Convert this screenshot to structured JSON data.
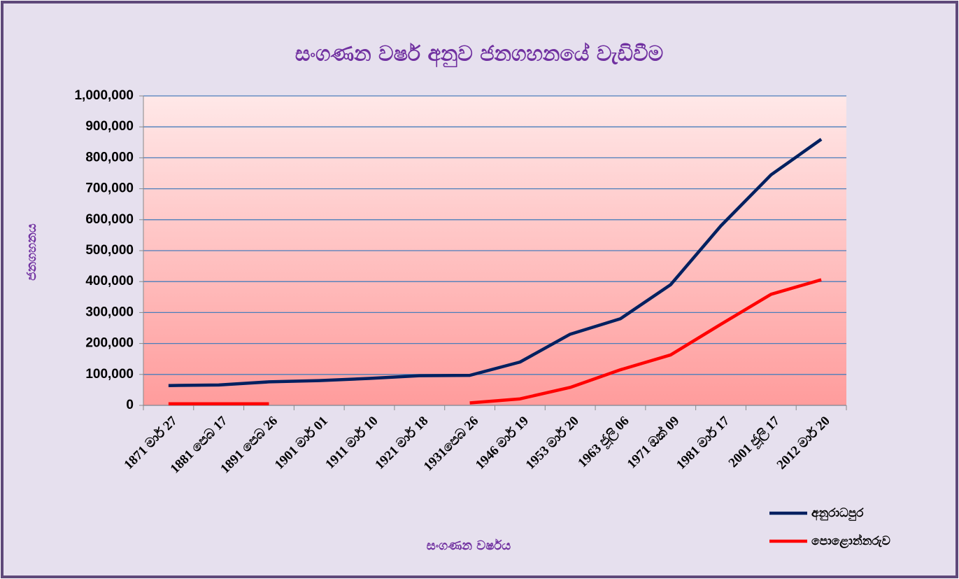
{
  "chart_data": {
    "type": "line",
    "title": "සංගණන වර්ෂ අනුව ජනගහනයේ වැඩිවීම",
    "x_label": "සංගණන වර්ෂය",
    "y_label": "ජනගහනය",
    "categories": [
      "1871 මාර් 27",
      "1881 පෙබ 17",
      "1891 පෙබ 26",
      "1901 මාර් 01",
      "1911 මාර් 10",
      "1921 මාර් 18",
      "1931පෙබ 26",
      "1946 මාර් 19",
      "1953 මාර් 20",
      "1963 ජූලි 06",
      "1971 ඔක් 09",
      "1981 මාර් 17",
      "2001 ජූලි 17",
      "2012 මාර් 20"
    ],
    "series": [
      {
        "name": "අනුරාධපුර",
        "color": "#002060",
        "values": [
          64000,
          66000,
          76000,
          80000,
          87000,
          96000,
          97000,
          140000,
          230000,
          280000,
          390000,
          580000,
          745000,
          860000
        ]
      },
      {
        "name": "පොළොන්නරුව",
        "color": "#ff0000",
        "values": [
          5000,
          5000,
          5000,
          null,
          null,
          null,
          8000,
          21000,
          58000,
          115000,
          163000,
          262000,
          359000,
          406000
        ]
      }
    ],
    "ylim": [
      0,
      1000000
    ],
    "yticks": [
      0,
      {
        "value": 100000,
        "label": "100,000"
      },
      {
        "value": 200000,
        "label": "200,000"
      },
      {
        "value": 300000,
        "label": "300,000"
      },
      {
        "value": 400000,
        "label": "400,000"
      },
      {
        "value": 500000,
        "label": "500,000"
      },
      {
        "value": 600000,
        "label": "600,000"
      },
      {
        "value": 700000,
        "label": "700,000"
      },
      {
        "value": 800000,
        "label": "800,000"
      },
      {
        "value": 900000,
        "label": "900,000"
      },
      {
        "value": 1000000,
        "label": "1,000,000"
      }
    ],
    "grid": true,
    "legend": "bottom-right"
  }
}
